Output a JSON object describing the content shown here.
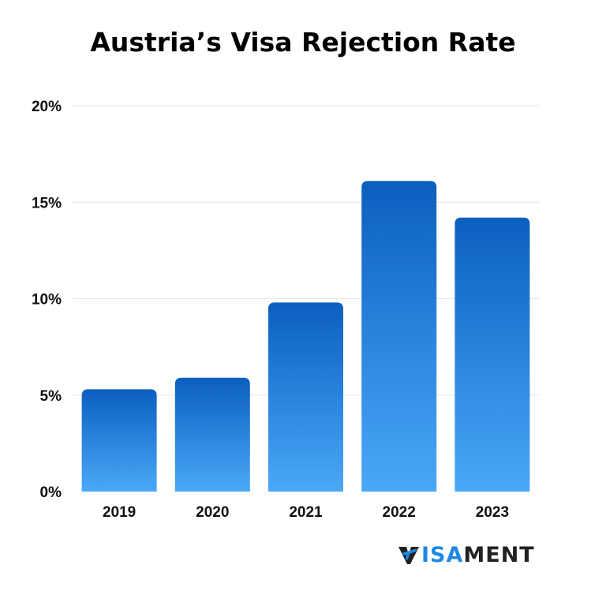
{
  "chart_data": {
    "type": "bar",
    "title": "Austria’s Visa Rejection Rate",
    "categories": [
      "2019",
      "2020",
      "2021",
      "2022",
      "2023"
    ],
    "values": [
      5.3,
      5.9,
      9.8,
      16.1,
      14.2
    ],
    "ylim": [
      0,
      20
    ],
    "yticks": [
      0,
      5,
      10,
      15,
      20
    ],
    "ytick_labels": [
      "0%",
      "5%",
      "10%",
      "15%",
      "20%"
    ],
    "xlabel": "",
    "ylabel": "",
    "grid": true,
    "legend": "none",
    "colors": {
      "bar_top": "#0b5fbf",
      "bar_bottom": "#4aa8f8",
      "grid": "#e6e6e6"
    }
  },
  "logo": {
    "part_a": "ISA",
    "part_b": "MENT",
    "icon": "airplane-v-icon"
  }
}
